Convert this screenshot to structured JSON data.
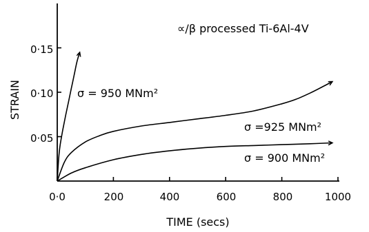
{
  "chart_data": {
    "type": "line",
    "title": "∝/β processed Ti-6Al-4V",
    "xlabel": "TIME  (secs)",
    "ylabel": "STRAIN",
    "xlim": [
      0,
      1000
    ],
    "ylim": [
      0,
      0.2
    ],
    "x_ticks": [
      0,
      200,
      400,
      600,
      800,
      1000
    ],
    "x_tick_labels": [
      "0·0",
      "200",
      "400",
      "600",
      "800",
      "1000"
    ],
    "y_ticks": [
      0.05,
      0.1,
      0.15
    ],
    "y_tick_labels": [
      "0·05",
      "0·10",
      "0·15"
    ],
    "grid": false,
    "series": [
      {
        "name": "σ = 950 MNm²",
        "end": "arrow",
        "x": [
          0,
          5,
          10,
          20,
          30,
          40,
          50,
          60,
          70,
          80
        ],
        "y": [
          0,
          0.025,
          0.04,
          0.058,
          0.074,
          0.089,
          0.104,
          0.119,
          0.134,
          0.145
        ]
      },
      {
        "name": "σ =925 MNm²",
        "end": "arrow",
        "x": [
          0,
          25,
          50,
          100,
          150,
          200,
          300,
          400,
          500,
          600,
          700,
          800,
          850,
          900,
          950,
          980
        ],
        "y": [
          0,
          0.021,
          0.032,
          0.044,
          0.051,
          0.056,
          0.062,
          0.066,
          0.07,
          0.074,
          0.079,
          0.087,
          0.092,
          0.099,
          0.107,
          0.112
        ]
      },
      {
        "name": "σ = 900 MNm²",
        "end": "arrow",
        "x": [
          0,
          50,
          100,
          200,
          300,
          400,
          500,
          600,
          700,
          800,
          900,
          980
        ],
        "y": [
          0,
          0.009,
          0.015,
          0.024,
          0.03,
          0.034,
          0.037,
          0.039,
          0.04,
          0.041,
          0.042,
          0.043
        ]
      }
    ]
  }
}
